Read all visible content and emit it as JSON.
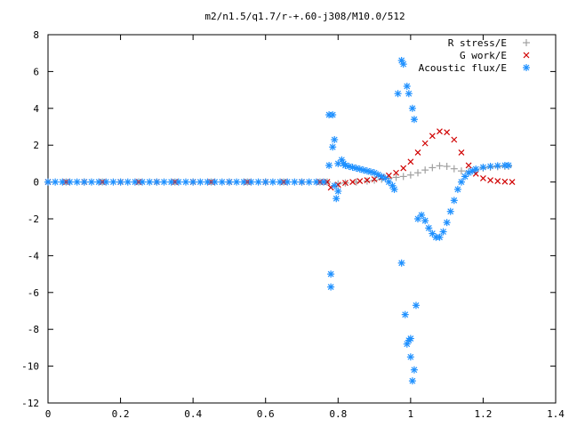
{
  "chart_data": {
    "type": "scatter",
    "title": "m2/n1.5/q1.7/r-+.60-j308/M10.0/512",
    "xlim": [
      0,
      1.4
    ],
    "ylim": [
      -12,
      8
    ],
    "xticks": [
      "0",
      "0.2",
      "0.4",
      "0.6",
      "0.8",
      "1",
      "1.2",
      "1.4"
    ],
    "xtick_values": [
      0,
      0.2,
      0.4,
      0.6,
      0.8,
      1.0,
      1.2,
      1.4
    ],
    "yticks": [
      "8",
      "6",
      "4",
      "2",
      "0",
      "-2",
      "-4",
      "-6",
      "-8",
      "-10",
      "-12"
    ],
    "ytick_values": [
      8,
      6,
      4,
      2,
      0,
      -2,
      -4,
      -6,
      -8,
      -10,
      -12
    ],
    "grid": false,
    "legend_position": "top-right",
    "series": [
      {
        "name": "R stress/E",
        "color": "#a0a0a0",
        "marker": "plus",
        "points": [
          [
            0.0,
            0
          ],
          [
            0.05,
            0
          ],
          [
            0.1,
            0
          ],
          [
            0.15,
            0
          ],
          [
            0.2,
            0
          ],
          [
            0.25,
            0
          ],
          [
            0.3,
            0
          ],
          [
            0.35,
            0
          ],
          [
            0.4,
            0
          ],
          [
            0.45,
            0
          ],
          [
            0.5,
            0
          ],
          [
            0.55,
            0
          ],
          [
            0.6,
            0
          ],
          [
            0.65,
            0
          ],
          [
            0.7,
            0
          ],
          [
            0.75,
            0
          ],
          [
            0.77,
            0
          ],
          [
            0.8,
            -0.1
          ],
          [
            0.82,
            -0.05
          ],
          [
            0.85,
            0.0
          ],
          [
            0.88,
            0.05
          ],
          [
            0.9,
            0.1
          ],
          [
            0.92,
            0.15
          ],
          [
            0.94,
            0.2
          ],
          [
            0.96,
            0.25
          ],
          [
            0.98,
            0.3
          ],
          [
            1.0,
            0.38
          ],
          [
            1.02,
            0.5
          ],
          [
            1.04,
            0.65
          ],
          [
            1.06,
            0.78
          ],
          [
            1.08,
            0.88
          ],
          [
            1.1,
            0.85
          ],
          [
            1.12,
            0.72
          ],
          [
            1.14,
            0.6
          ],
          [
            1.16,
            0.58
          ],
          [
            1.18,
            0.65
          ],
          [
            1.2,
            0.75
          ],
          [
            1.22,
            0.8
          ],
          [
            1.24,
            0.83
          ],
          [
            1.26,
            0.85
          ],
          [
            1.27,
            0.85
          ]
        ]
      },
      {
        "name": "G work/E",
        "color": "#d00000",
        "marker": "cross",
        "points": [
          [
            0.0,
            0
          ],
          [
            0.05,
            0
          ],
          [
            0.1,
            0
          ],
          [
            0.15,
            0
          ],
          [
            0.2,
            0
          ],
          [
            0.25,
            0
          ],
          [
            0.3,
            0
          ],
          [
            0.35,
            0
          ],
          [
            0.4,
            0
          ],
          [
            0.45,
            0
          ],
          [
            0.5,
            0
          ],
          [
            0.55,
            0
          ],
          [
            0.6,
            0
          ],
          [
            0.65,
            0
          ],
          [
            0.7,
            0
          ],
          [
            0.75,
            0
          ],
          [
            0.77,
            0
          ],
          [
            0.78,
            -0.3
          ],
          [
            0.8,
            -0.15
          ],
          [
            0.82,
            -0.05
          ],
          [
            0.84,
            0.0
          ],
          [
            0.86,
            0.05
          ],
          [
            0.88,
            0.1
          ],
          [
            0.9,
            0.15
          ],
          [
            0.92,
            0.25
          ],
          [
            0.94,
            0.35
          ],
          [
            0.96,
            0.5
          ],
          [
            0.98,
            0.75
          ],
          [
            1.0,
            1.1
          ],
          [
            1.02,
            1.6
          ],
          [
            1.04,
            2.1
          ],
          [
            1.06,
            2.5
          ],
          [
            1.08,
            2.75
          ],
          [
            1.1,
            2.7
          ],
          [
            1.12,
            2.3
          ],
          [
            1.14,
            1.6
          ],
          [
            1.16,
            0.9
          ],
          [
            1.18,
            0.45
          ],
          [
            1.2,
            0.2
          ],
          [
            1.22,
            0.1
          ],
          [
            1.24,
            0.05
          ],
          [
            1.26,
            0.02
          ],
          [
            1.28,
            0.0
          ]
        ]
      },
      {
        "name": "Acoustic flux/E",
        "color": "#1e90ff",
        "marker": "star",
        "points": [
          [
            0.0,
            0
          ],
          [
            0.02,
            0
          ],
          [
            0.04,
            0
          ],
          [
            0.06,
            0
          ],
          [
            0.08,
            0
          ],
          [
            0.1,
            0
          ],
          [
            0.12,
            0
          ],
          [
            0.14,
            0
          ],
          [
            0.16,
            0
          ],
          [
            0.18,
            0
          ],
          [
            0.2,
            0
          ],
          [
            0.22,
            0
          ],
          [
            0.24,
            0
          ],
          [
            0.26,
            0
          ],
          [
            0.28,
            0
          ],
          [
            0.3,
            0
          ],
          [
            0.32,
            0
          ],
          [
            0.34,
            0
          ],
          [
            0.36,
            0
          ],
          [
            0.38,
            0
          ],
          [
            0.4,
            0
          ],
          [
            0.42,
            0
          ],
          [
            0.44,
            0
          ],
          [
            0.46,
            0
          ],
          [
            0.48,
            0
          ],
          [
            0.5,
            0
          ],
          [
            0.52,
            0
          ],
          [
            0.54,
            0
          ],
          [
            0.56,
            0
          ],
          [
            0.58,
            0
          ],
          [
            0.6,
            0
          ],
          [
            0.62,
            0
          ],
          [
            0.64,
            0
          ],
          [
            0.66,
            0
          ],
          [
            0.68,
            0
          ],
          [
            0.7,
            0
          ],
          [
            0.72,
            0
          ],
          [
            0.74,
            0
          ],
          [
            0.76,
            0
          ],
          [
            0.775,
            3.65
          ],
          [
            0.785,
            3.65
          ],
          [
            0.78,
            -5.0
          ],
          [
            0.78,
            -5.7
          ],
          [
            0.79,
            2.3
          ],
          [
            0.785,
            1.9
          ],
          [
            0.775,
            0.9
          ],
          [
            0.79,
            -0.2
          ],
          [
            0.8,
            -0.5
          ],
          [
            0.795,
            -0.9
          ],
          [
            0.8,
            1.0
          ],
          [
            0.81,
            1.2
          ],
          [
            0.815,
            1.0
          ],
          [
            0.82,
            0.9
          ],
          [
            0.83,
            0.85
          ],
          [
            0.84,
            0.8
          ],
          [
            0.85,
            0.75
          ],
          [
            0.86,
            0.7
          ],
          [
            0.87,
            0.65
          ],
          [
            0.88,
            0.6
          ],
          [
            0.89,
            0.55
          ],
          [
            0.9,
            0.5
          ],
          [
            0.91,
            0.4
          ],
          [
            0.92,
            0.3
          ],
          [
            0.93,
            0.2
          ],
          [
            0.94,
            0.0
          ],
          [
            0.95,
            -0.2
          ],
          [
            0.955,
            -0.4
          ],
          [
            0.965,
            4.8
          ],
          [
            0.975,
            6.6
          ],
          [
            0.98,
            6.4
          ],
          [
            0.99,
            5.2
          ],
          [
            0.995,
            4.8
          ],
          [
            1.005,
            4.0
          ],
          [
            0.975,
            -4.4
          ],
          [
            0.985,
            -7.2
          ],
          [
            0.99,
            -8.8
          ],
          [
            0.995,
            -8.6
          ],
          [
            1.0,
            -8.5
          ],
          [
            1.0,
            -9.5
          ],
          [
            1.01,
            -10.2
          ],
          [
            1.005,
            -10.8
          ],
          [
            1.015,
            -6.7
          ],
          [
            1.01,
            3.4
          ],
          [
            1.02,
            -2.0
          ],
          [
            1.03,
            -1.8
          ],
          [
            1.04,
            -2.1
          ],
          [
            1.05,
            -2.5
          ],
          [
            1.06,
            -2.8
          ],
          [
            1.07,
            -3.0
          ],
          [
            1.08,
            -3.0
          ],
          [
            1.09,
            -2.7
          ],
          [
            1.1,
            -2.2
          ],
          [
            1.11,
            -1.6
          ],
          [
            1.12,
            -1.0
          ],
          [
            1.13,
            -0.4
          ],
          [
            1.14,
            0.0
          ],
          [
            1.15,
            0.3
          ],
          [
            1.16,
            0.5
          ],
          [
            1.17,
            0.6
          ],
          [
            1.18,
            0.7
          ],
          [
            1.2,
            0.8
          ],
          [
            1.22,
            0.85
          ],
          [
            1.24,
            0.88
          ],
          [
            1.26,
            0.9
          ],
          [
            1.27,
            0.9
          ]
        ]
      }
    ]
  }
}
